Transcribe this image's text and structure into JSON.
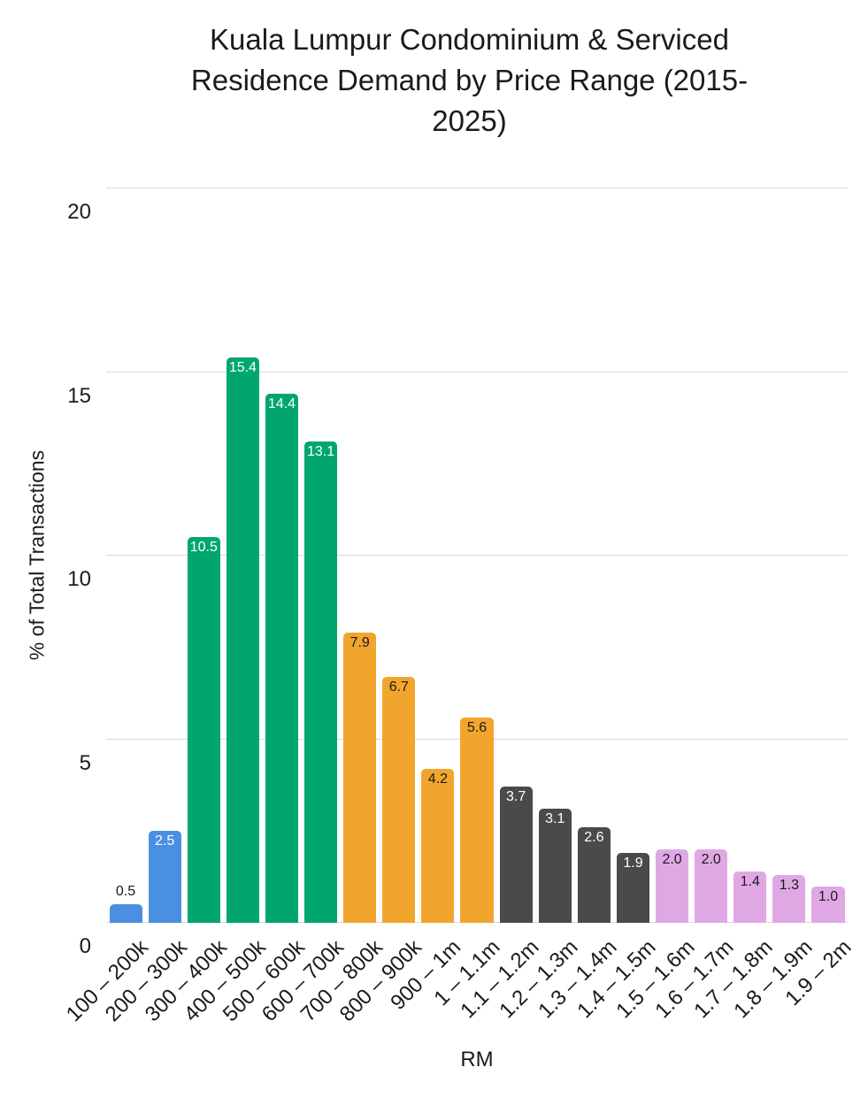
{
  "title": {
    "lines": [
      "Kuala Lumpur Condominium & Serviced",
      "Residence Demand by Price Range (2015-",
      "2025)"
    ]
  },
  "y_axis": {
    "title": "% of Total Transactions",
    "ticks": [
      "0",
      "5",
      "10",
      "15",
      "20"
    ],
    "tick_values": [
      0,
      5,
      10,
      15,
      20
    ]
  },
  "x_axis": {
    "title": "RM"
  },
  "chart_data": {
    "type": "bar",
    "title": "Kuala Lumpur Condominium & Serviced Residence Demand by Price Range (2015-2025)",
    "xlabel": "RM",
    "ylabel": "% of Total Transactions",
    "ylim": [
      0,
      20
    ],
    "yticks": [
      0,
      5,
      10,
      15,
      20
    ],
    "grid": true,
    "legend": false,
    "categories": [
      "100 – 200k",
      "200 – 300k",
      "300 – 400k",
      "400 – 500k",
      "500 – 600k",
      "600 – 700k",
      "700 – 800k",
      "800 – 900k",
      "900 – 1m",
      "1 – 1.1m",
      "1.1 – 1.2m",
      "1.2 – 1.3m",
      "1.3 – 1.4m",
      "1.4 – 1.5m",
      "1.5 – 1.6m",
      "1.6 – 1.7m",
      "1.7 – 1.8m",
      "1.8 – 1.9m",
      "1.9 – 2m"
    ],
    "values": [
      0.5,
      2.5,
      10.5,
      15.4,
      14.4,
      13.1,
      7.9,
      6.7,
      4.2,
      5.6,
      3.7,
      3.1,
      2.6,
      1.9,
      2.0,
      2.0,
      1.4,
      1.3,
      1.0
    ],
    "value_labels": [
      "0.5",
      "2.5",
      "10.5",
      "15.4",
      "14.4",
      "13.1",
      "7.9",
      "6.7",
      "4.2",
      "5.6",
      "3.7",
      "3.1",
      "2.6",
      "1.9",
      "2.0",
      "2.0",
      "1.4",
      "1.3",
      "1.0"
    ],
    "bar_colors": [
      "#4A90E2",
      "#4A90E2",
      "#00A66E",
      "#00A66E",
      "#00A66E",
      "#00A66E",
      "#F2A52C",
      "#F2A52C",
      "#F2A52C",
      "#F2A52C",
      "#4A4A4A",
      "#4A4A4A",
      "#4A4A4A",
      "#4A4A4A",
      "#DFA8E4",
      "#DFA8E4",
      "#DFA8E4",
      "#DFA8E4",
      "#DFA8E4"
    ],
    "value_label_colors": [
      "#1b1b1b",
      "#ffffff",
      "#ffffff",
      "#ffffff",
      "#ffffff",
      "#ffffff",
      "#1b1b1b",
      "#1b1b1b",
      "#1b1b1b",
      "#1b1b1b",
      "#ffffff",
      "#ffffff",
      "#ffffff",
      "#ffffff",
      "#1b1b1b",
      "#1b1b1b",
      "#1b1b1b",
      "#1b1b1b",
      "#1b1b1b"
    ]
  },
  "palette": {
    "blue": "#4A90E2",
    "green": "#00A66E",
    "orange": "#F2A52C",
    "dark_gray": "#4A4A4A",
    "plum": "#DFA8E4",
    "gridline": "#D9D9D9",
    "text": "#1B1B1B",
    "background": "#FFFFFF"
  }
}
